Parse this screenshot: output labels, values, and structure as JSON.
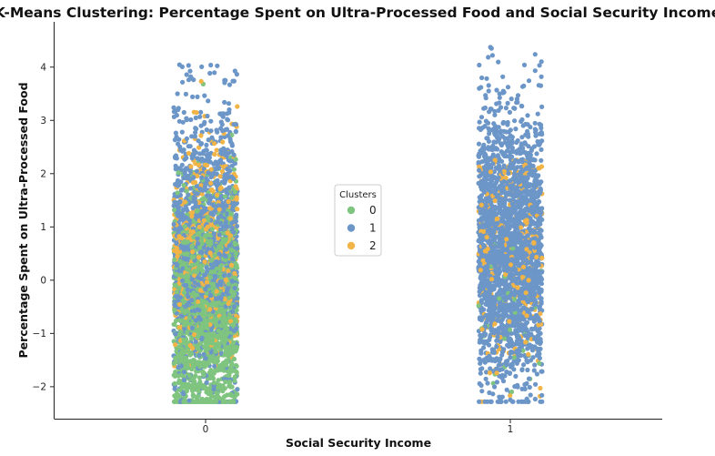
{
  "chart_data": {
    "type": "scatter",
    "title": "K-Means Clustering: Percentage Spent on Ultra-Processed Food and Social Security Income",
    "xlabel": "Social Security Income",
    "ylabel": "Percentage Spent on Ultra-Processed Food",
    "categories": [
      "0",
      "1"
    ],
    "ylim": [
      -2.6,
      4.85
    ],
    "yticks": [
      -2,
      -1,
      0,
      1,
      2,
      3,
      4
    ],
    "grid": false,
    "legend": {
      "title": "Clusters",
      "placement": "center",
      "entries": [
        "0",
        "1",
        "2"
      ]
    },
    "colors": {
      "0": "#7fc47f",
      "1": "#6c96c8",
      "2": "#f2b447"
    },
    "series": [
      {
        "name": "0",
        "distribution": [
          {
            "x": "0",
            "count": 1700,
            "y_center": -0.6,
            "y_spread": 1.1,
            "y_min": -2.28,
            "y_max": 3.75
          },
          {
            "x": "1",
            "count": 55,
            "y_center": -0.4,
            "y_spread": 1.0,
            "y_min": -2.28,
            "y_max": 2.2
          }
        ]
      },
      {
        "name": "1",
        "distribution": [
          {
            "x": "0",
            "count": 1350,
            "y_center": 0.7,
            "y_spread": 1.3,
            "y_min": -2.28,
            "y_max": 4.05
          },
          {
            "x": "1",
            "count": 2300,
            "y_center": 0.6,
            "y_spread": 1.25,
            "y_min": -2.28,
            "y_max": 4.55
          }
        ]
      },
      {
        "name": "2",
        "distribution": [
          {
            "x": "0",
            "count": 480,
            "y_center": 0.6,
            "y_spread": 1.0,
            "y_min": -2.28,
            "y_max": 4.55
          },
          {
            "x": "1",
            "count": 260,
            "y_center": 0.6,
            "y_spread": 1.1,
            "y_min": -2.28,
            "y_max": 2.3
          }
        ]
      }
    ]
  }
}
